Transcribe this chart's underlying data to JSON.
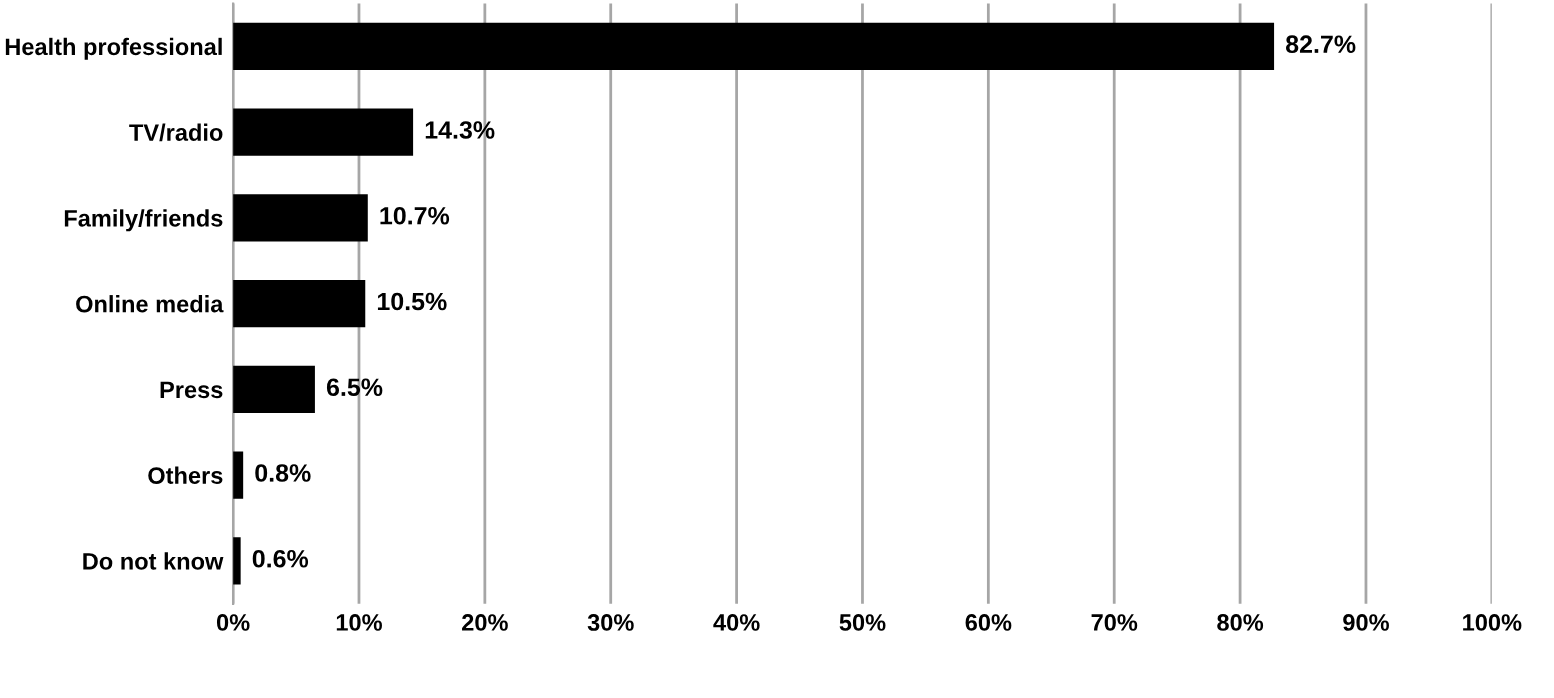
{
  "chart_data": {
    "type": "bar",
    "orientation": "horizontal",
    "categories": [
      "Health professional",
      "TV/radio",
      "Family/friends",
      "Online media",
      "Press",
      "Others",
      "Do not know"
    ],
    "values": [
      82.7,
      14.3,
      10.7,
      10.5,
      6.5,
      0.8,
      0.6
    ],
    "value_labels": [
      "82.7%",
      "14.3%",
      "10.7%",
      "10.5%",
      "6.5%",
      "0.8%",
      "0.6%"
    ],
    "color": "#000000",
    "xlim": [
      0,
      100
    ],
    "xticks": [
      {
        "value": 0,
        "label": "0%"
      },
      {
        "value": 10,
        "label": "10%"
      },
      {
        "value": 20,
        "label": "20%"
      },
      {
        "value": 30,
        "label": "30%"
      },
      {
        "value": 40,
        "label": "40%"
      },
      {
        "value": 50,
        "label": "50%"
      },
      {
        "value": 60,
        "label": "60%"
      },
      {
        "value": 70,
        "label": "70%"
      },
      {
        "value": 80,
        "label": "80%"
      },
      {
        "value": 90,
        "label": "90%"
      },
      {
        "value": 100,
        "label": "100%"
      }
    ],
    "grid": "x",
    "legend": false
  }
}
